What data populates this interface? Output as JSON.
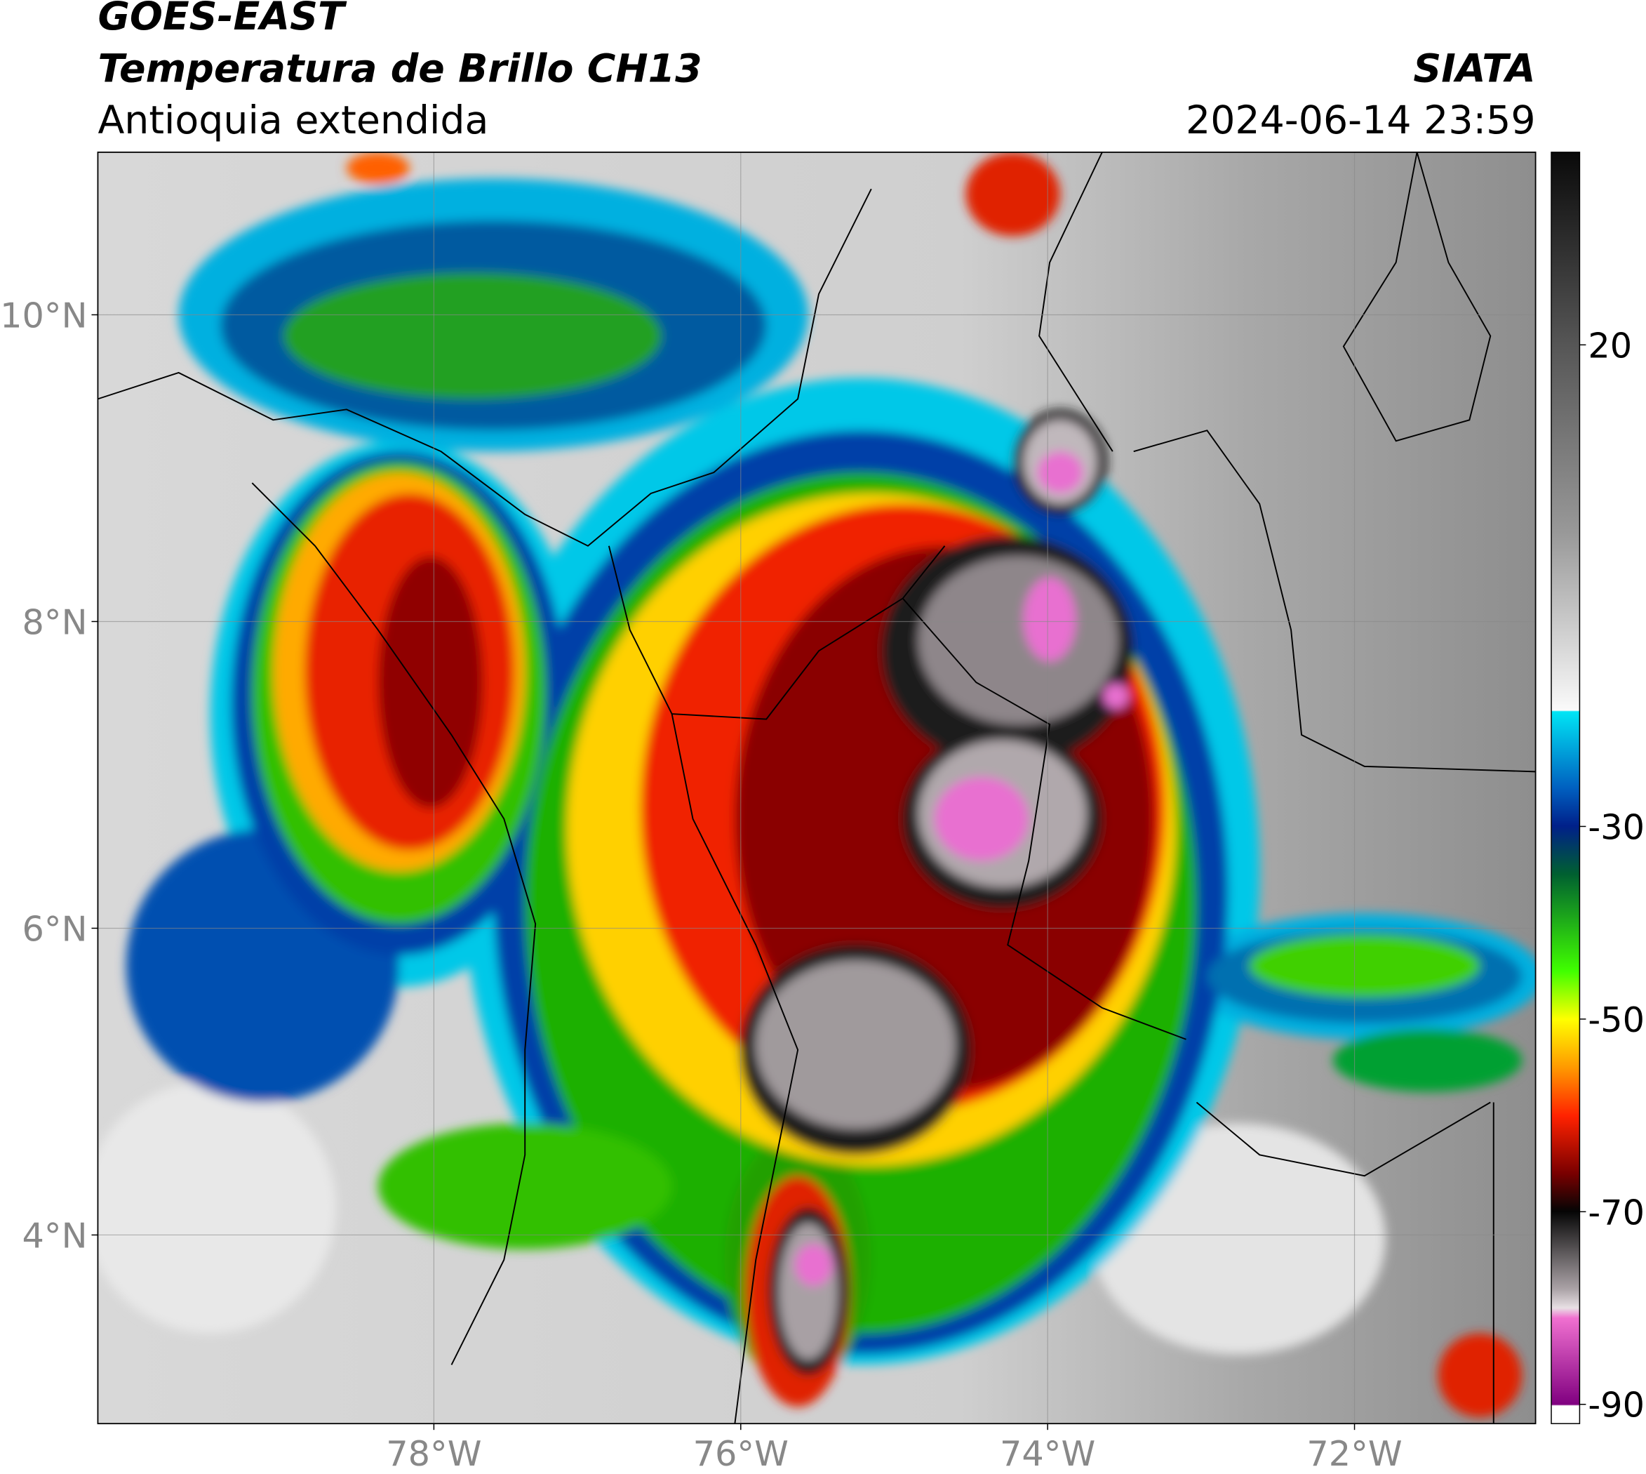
{
  "header": {
    "title": "GOES-EAST",
    "subtitle": "Temperatura de Brillo CH13",
    "region": "Antioquia extendida",
    "source": "SIATA",
    "timestamp": "2024-06-14 23:59"
  },
  "map": {
    "type": "map",
    "xlim": [
      -80.19,
      -70.82
    ],
    "ylim": [
      2.77,
      11.06
    ],
    "xticks": [
      {
        "value": -78,
        "label": "78°W"
      },
      {
        "value": -76,
        "label": "76°W"
      },
      {
        "value": -74,
        "label": "74°W"
      },
      {
        "value": -72,
        "label": "72°W"
      }
    ],
    "yticks": [
      {
        "value": 4,
        "label": "4°N"
      },
      {
        "value": 6,
        "label": "6°N"
      },
      {
        "value": 8,
        "label": "8°N"
      },
      {
        "value": 10,
        "label": "10°N"
      }
    ],
    "grid": true
  },
  "colorbar": {
    "clim": [
      -92,
      40
    ],
    "ticks": [
      20,
      -30,
      -50,
      -70,
      -90
    ]
  }
}
